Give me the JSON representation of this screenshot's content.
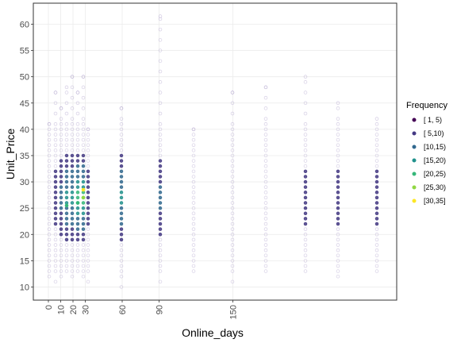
{
  "chart_data": {
    "type": "scatter",
    "xlabel": "Online_days",
    "ylabel": "Unit_Price",
    "xlim": [
      -3,
      206
    ],
    "ylim": [
      7.5,
      64
    ],
    "x_ticks": [
      0,
      10,
      20,
      30,
      60,
      90,
      150
    ],
    "x_tick_labels": [
      "0",
      "10",
      "20",
      "30",
      "60",
      "90",
      "150"
    ],
    "y_ticks": [
      10,
      15,
      20,
      25,
      30,
      35,
      40,
      45,
      50,
      55,
      60
    ],
    "y_tick_labels": [
      "10",
      "15",
      "20",
      "25",
      "30",
      "35",
      "40",
      "45",
      "50",
      "55",
      "60"
    ],
    "grid": true,
    "legend": {
      "title": "Frequency",
      "position": "right",
      "entries": [
        "[ 1, 5)",
        "[ 5,10)",
        "[10,15)",
        "[15,20)",
        "[20,25)",
        "[25,30)",
        "[30,35]"
      ],
      "colors": [
        "#440154",
        "#443983",
        "#31688e",
        "#21918c",
        "#35b779",
        "#90d743",
        "#fde725"
      ]
    },
    "columns": [
      {
        "x": 0,
        "ymin": 11.0,
        "ymax": 41.0,
        "core": 0
      },
      {
        "x": 5,
        "ymin": 11.0,
        "ymax": 47.0,
        "core": 1
      },
      {
        "x": 10,
        "ymin": 10.5,
        "ymax": 44.0,
        "core": 2
      },
      {
        "x": 15,
        "ymin": 12.0,
        "ymax": 48.0,
        "core": 3
      },
      {
        "x": 20,
        "ymin": 12.0,
        "ymax": 50.0,
        "core": 3
      },
      {
        "x": 25,
        "ymin": 12.0,
        "ymax": 47.0,
        "core": 4
      },
      {
        "x": 30,
        "ymin": 11.0,
        "ymax": 50.0,
        "core": 4
      },
      {
        "x": 33,
        "ymin": 11.0,
        "ymax": 40.0,
        "core": 1
      },
      {
        "x": 60,
        "ymin": 10.0,
        "ymax": 44.0,
        "core": 3
      },
      {
        "x": 90,
        "ymin": 10.0,
        "ymax": 61.5,
        "core": 2
      },
      {
        "x": 110,
        "ymin": 13.0,
        "ymax": 40.0,
        "core": 0
      },
      {
        "x": 150,
        "ymin": 11.0,
        "ymax": 47.0,
        "core": 0
      },
      {
        "x": 165,
        "ymin": 13.0,
        "ymax": 48.0,
        "core": 0
      },
      {
        "x": 195,
        "ymin": 12.0,
        "ymax": 50.0,
        "core": 1
      },
      {
        "x": 220,
        "ymin": 12.0,
        "ymax": 45.0,
        "core": 1
      },
      {
        "x": 245,
        "ymin": 12.0,
        "ymax": 42.0,
        "core": 1
      }
    ]
  }
}
